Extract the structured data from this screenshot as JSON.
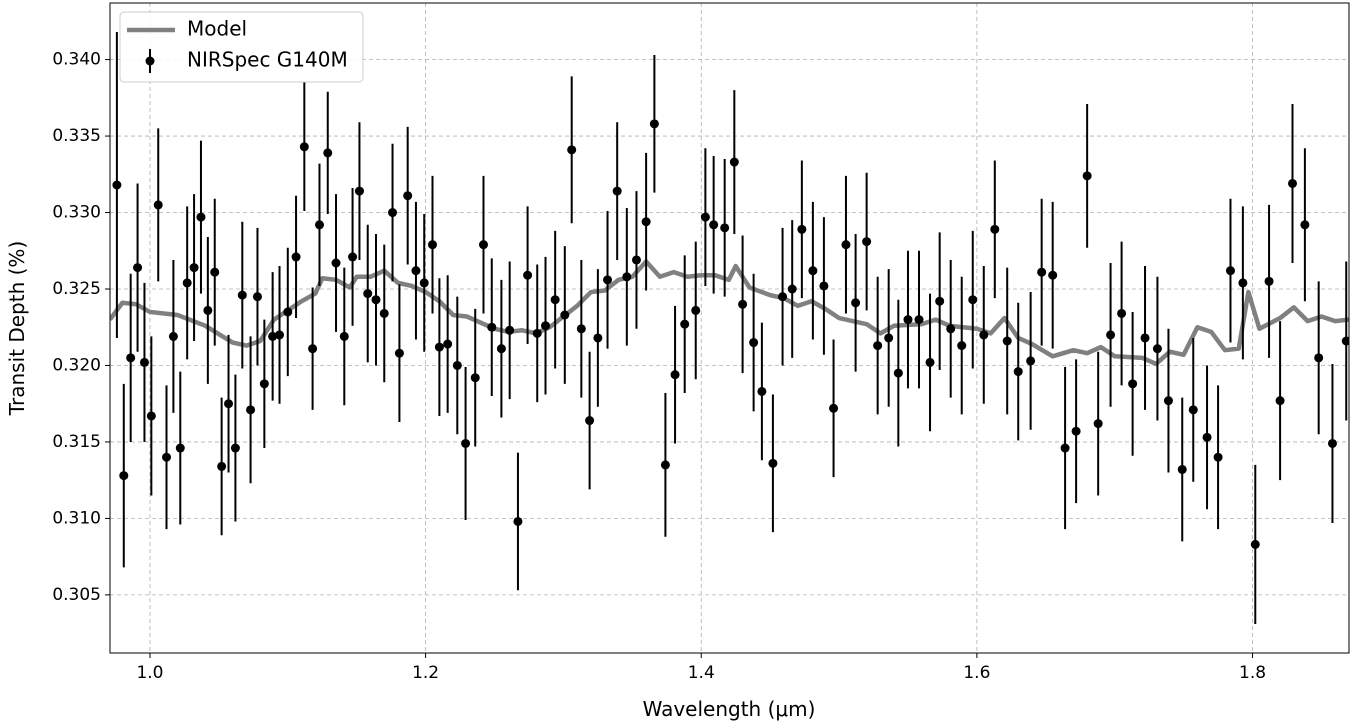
{
  "chart_data": {
    "type": "errorbar",
    "xlabel": "Wavelength (μm)",
    "ylabel": "Transit Depth (%)",
    "xlim": [
      0.971,
      1.87
    ],
    "ylim": [
      0.3012,
      0.3437
    ],
    "xticks": [
      {
        "value": 1,
        "label": "1.0"
      },
      1.2,
      1.4,
      1.6,
      1.8
    ],
    "yticks": [
      {
        "value": 0.34,
        "label": "0.340"
      },
      0.335,
      {
        "value": 0.33,
        "label": "0.330"
      },
      0.325,
      {
        "value": 0.32,
        "label": "0.320"
      },
      0.315,
      {
        "value": 0.31,
        "label": "0.310"
      },
      0.305
    ],
    "grid": true,
    "legend": "upper left",
    "series": [
      {
        "name": "Model",
        "type": "line",
        "color": "#808080",
        "x": [
          0.971,
          0.98,
          0.99,
          1.0,
          1.02,
          1.04,
          1.06,
          1.07,
          1.08,
          1.09,
          1.11,
          1.12,
          1.125,
          1.135,
          1.145,
          1.15,
          1.16,
          1.17,
          1.18,
          1.19,
          1.2,
          1.21,
          1.22,
          1.23,
          1.24,
          1.25,
          1.26,
          1.27,
          1.28,
          1.29,
          1.3,
          1.31,
          1.32,
          1.33,
          1.34,
          1.35,
          1.36,
          1.37,
          1.38,
          1.39,
          1.4,
          1.41,
          1.42,
          1.425,
          1.435,
          1.45,
          1.46,
          1.47,
          1.48,
          1.49,
          1.5,
          1.52,
          1.53,
          1.54,
          1.56,
          1.57,
          1.58,
          1.6,
          1.61,
          1.62,
          1.63,
          1.64,
          1.655,
          1.67,
          1.68,
          1.69,
          1.7,
          1.72,
          1.73,
          1.74,
          1.75,
          1.76,
          1.77,
          1.78,
          1.79,
          1.797,
          1.805,
          1.82,
          1.83,
          1.84,
          1.85,
          1.86,
          1.87
        ],
        "values": [
          0.323,
          0.3241,
          0.324,
          0.3235,
          0.3233,
          0.3226,
          0.3215,
          0.3213,
          0.3216,
          0.323,
          0.3242,
          0.3247,
          0.3257,
          0.3256,
          0.3251,
          0.3258,
          0.3258,
          0.3262,
          0.3254,
          0.3252,
          0.3248,
          0.3242,
          0.3233,
          0.3232,
          0.3228,
          0.3224,
          0.3222,
          0.3223,
          0.3221,
          0.3225,
          0.3232,
          0.3239,
          0.3248,
          0.3249,
          0.3256,
          0.3258,
          0.3268,
          0.3258,
          0.3261,
          0.3258,
          0.3259,
          0.3259,
          0.3256,
          0.3265,
          0.3251,
          0.3246,
          0.3244,
          0.3239,
          0.3242,
          0.3237,
          0.3231,
          0.3227,
          0.3221,
          0.3226,
          0.3227,
          0.323,
          0.3226,
          0.3224,
          0.3221,
          0.3231,
          0.3218,
          0.3214,
          0.3206,
          0.321,
          0.3208,
          0.3212,
          0.3206,
          0.3205,
          0.3201,
          0.3209,
          0.3207,
          0.3225,
          0.3222,
          0.321,
          0.3211,
          0.3248,
          0.3224,
          0.3231,
          0.3238,
          0.3229,
          0.3232,
          0.3229,
          0.323
        ]
      },
      {
        "name": "NIRSpec G140M",
        "type": "errorbar",
        "color": "#000000",
        "x": [
          0.976,
          0.981,
          0.986,
          0.991,
          0.996,
          1.001,
          1.006,
          1.012,
          1.017,
          1.022,
          1.027,
          1.032,
          1.037,
          1.042,
          1.047,
          1.052,
          1.057,
          1.062,
          1.067,
          1.073,
          1.078,
          1.083,
          1.089,
          1.094,
          1.1,
          1.106,
          1.112,
          1.118,
          1.123,
          1.129,
          1.135,
          1.141,
          1.147,
          1.152,
          1.158,
          1.164,
          1.17,
          1.176,
          1.181,
          1.187,
          1.193,
          1.199,
          1.205,
          1.21,
          1.216,
          1.223,
          1.229,
          1.236,
          1.242,
          1.248,
          1.255,
          1.261,
          1.267,
          1.274,
          1.281,
          1.287,
          1.294,
          1.301,
          1.306,
          1.313,
          1.319,
          1.325,
          1.332,
          1.339,
          1.346,
          1.353,
          1.36,
          1.366,
          1.374,
          1.381,
          1.388,
          1.396,
          1.403,
          1.409,
          1.417,
          1.424,
          1.43,
          1.438,
          1.444,
          1.452,
          1.459,
          1.466,
          1.473,
          1.481,
          1.489,
          1.496,
          1.505,
          1.512,
          1.52,
          1.528,
          1.536,
          1.543,
          1.55,
          1.558,
          1.566,
          1.573,
          1.581,
          1.589,
          1.597,
          1.605,
          1.613,
          1.622,
          1.63,
          1.639,
          1.647,
          1.655,
          1.664,
          1.672,
          1.68,
          1.688,
          1.697,
          1.705,
          1.713,
          1.722,
          1.731,
          1.739,
          1.749,
          1.757,
          1.767,
          1.775,
          1.784,
          1.793,
          1.802,
          1.812,
          1.82,
          1.829,
          1.838,
          1.848,
          1.858,
          1.868
        ],
        "values": [
          0.3318,
          0.3128,
          0.3205,
          0.3264,
          0.3202,
          0.3167,
          0.3305,
          0.314,
          0.3219,
          0.3146,
          0.3254,
          0.3264,
          0.3297,
          0.3236,
          0.3261,
          0.3134,
          0.3175,
          0.3146,
          0.3246,
          0.3171,
          0.3245,
          0.3188,
          0.3219,
          0.322,
          0.3235,
          0.3271,
          0.3343,
          0.3211,
          0.3292,
          0.3339,
          0.3267,
          0.3219,
          0.3271,
          0.3314,
          0.3247,
          0.3243,
          0.3234,
          0.33,
          0.3208,
          0.3311,
          0.3262,
          0.3254,
          0.3279,
          0.3212,
          0.3214,
          0.32,
          0.3149,
          0.3192,
          0.3279,
          0.3225,
          0.3211,
          0.3223,
          0.3098,
          0.3259,
          0.3221,
          0.3226,
          0.3243,
          0.3233,
          0.3341,
          0.3224,
          0.3164,
          0.3218,
          0.3256,
          0.3314,
          0.3258,
          0.3269,
          0.3294,
          0.3358,
          0.3135,
          0.3194,
          0.3227,
          0.3236,
          0.3297,
          0.3292,
          0.329,
          0.3333,
          0.324,
          0.3215,
          0.3183,
          0.3136,
          0.3245,
          0.325,
          0.3289,
          0.3262,
          0.3252,
          0.3172,
          0.3279,
          0.3241,
          0.3281,
          0.3213,
          0.3218,
          0.3195,
          0.323,
          0.323,
          0.3202,
          0.3242,
          0.3224,
          0.3213,
          0.3243,
          0.322,
          0.3289,
          0.3216,
          0.3196,
          0.3203,
          0.3261,
          0.3259,
          0.3146,
          0.3157,
          0.3324,
          0.3162,
          0.322,
          0.3234,
          0.3188,
          0.3218,
          0.3211,
          0.3177,
          0.3132,
          0.3171,
          0.3153,
          0.314,
          0.3262,
          0.3254,
          0.3083,
          0.3255,
          0.3177,
          0.3319,
          0.3292,
          0.3205,
          0.3149,
          0.3216
        ],
        "errors": [
          0.01,
          0.006,
          0.0055,
          0.0055,
          0.0052,
          0.0052,
          0.005,
          0.0047,
          0.005,
          0.005,
          0.005,
          0.0048,
          0.005,
          0.0048,
          0.0048,
          0.0045,
          0.0045,
          0.0048,
          0.0048,
          0.0048,
          0.0045,
          0.0042,
          0.0042,
          0.0045,
          0.0042,
          0.004,
          0.0042,
          0.004,
          0.004,
          0.004,
          0.0045,
          0.0045,
          0.0045,
          0.0045,
          0.0045,
          0.0043,
          0.0045,
          0.0045,
          0.0045,
          0.0045,
          0.0045,
          0.0045,
          0.0045,
          0.0045,
          0.0045,
          0.0045,
          0.005,
          0.0045,
          0.0045,
          0.0045,
          0.0045,
          0.0045,
          0.0045,
          0.0045,
          0.0045,
          0.0045,
          0.0045,
          0.0045,
          0.0048,
          0.0045,
          0.0045,
          0.0045,
          0.0045,
          0.0045,
          0.0045,
          0.0045,
          0.0045,
          0.0045,
          0.0047,
          0.0045,
          0.0045,
          0.0045,
          0.0045,
          0.0045,
          0.0045,
          0.0047,
          0.0045,
          0.0045,
          0.0045,
          0.0045,
          0.0045,
          0.0045,
          0.0045,
          0.0045,
          0.0045,
          0.0045,
          0.0045,
          0.0045,
          0.0045,
          0.0045,
          0.0045,
          0.0048,
          0.0045,
          0.0045,
          0.0045,
          0.0045,
          0.0045,
          0.0045,
          0.0045,
          0.0045,
          0.0045,
          0.0048,
          0.0045,
          0.0045,
          0.0048,
          0.0048,
          0.0053,
          0.0047,
          0.0047,
          0.0047,
          0.0047,
          0.0047,
          0.0047,
          0.0047,
          0.0047,
          0.0047,
          0.0047,
          0.0047,
          0.0047,
          0.0047,
          0.0047,
          0.005,
          0.0052,
          0.005,
          0.0052,
          0.0052,
          0.005,
          0.005,
          0.0052,
          0.0052
        ]
      }
    ]
  }
}
